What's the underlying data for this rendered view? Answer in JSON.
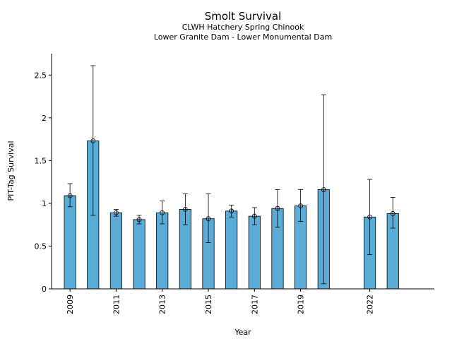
{
  "chart_data": {
    "type": "bar",
    "title": "Smolt Survival",
    "subtitle_lines": [
      "CLWH Hatchery Spring Chinook",
      "Lower Granite Dam - Lower Monumental Dam"
    ],
    "xlabel": "Year",
    "ylabel": "PIT-Tag Survival",
    "xlim": [
      2008.2,
      2024.8
    ],
    "ylim": [
      0,
      2.75
    ],
    "yticks": [
      0,
      0.5,
      1,
      1.5,
      2,
      2.5
    ],
    "ytick_labels": [
      "0",
      "0.5",
      "1",
      "1.5",
      "2",
      "2.5"
    ],
    "xticks": [
      2009,
      2011,
      2013,
      2015,
      2017,
      2019,
      2022
    ],
    "bar_width_years": 0.5,
    "bar_color": "#5aabd6",
    "edge_color": "#000000",
    "grid": false,
    "series": [
      {
        "x": [
          2009,
          2010,
          2011,
          2012,
          2013,
          2014,
          2015,
          2016,
          2017,
          2018,
          2019,
          2020,
          2022,
          2023
        ],
        "values": [
          1.09,
          1.73,
          0.89,
          0.81,
          0.89,
          0.93,
          0.82,
          0.91,
          0.85,
          0.94,
          0.97,
          1.16,
          0.84,
          0.88
        ],
        "err_low": [
          0.96,
          0.86,
          0.85,
          0.76,
          0.76,
          0.75,
          0.54,
          0.84,
          0.75,
          0.72,
          0.79,
          0.06,
          0.4,
          0.71
        ],
        "err_high": [
          1.23,
          2.61,
          0.93,
          0.86,
          1.03,
          1.11,
          1.11,
          0.98,
          0.95,
          1.16,
          1.16,
          2.27,
          1.28,
          1.07
        ]
      }
    ]
  }
}
